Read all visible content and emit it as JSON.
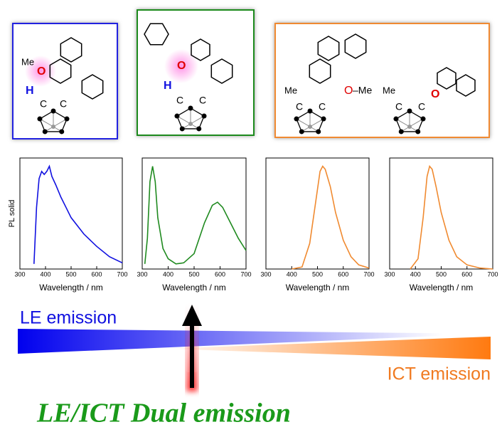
{
  "chart_data": [
    {
      "type": "line",
      "ylabel": "PL solid",
      "xlabel": "Wavelength / nm",
      "color": "#1010e0",
      "x": [
        355,
        365,
        375,
        385,
        395,
        405,
        415,
        425,
        440,
        460,
        480,
        500,
        550,
        600,
        650,
        700
      ],
      "values": [
        0.05,
        0.6,
        0.88,
        0.95,
        0.92,
        0.95,
        1.0,
        0.9,
        0.82,
        0.7,
        0.6,
        0.5,
        0.34,
        0.22,
        0.12,
        0.06
      ],
      "xlim": [
        300,
        700
      ],
      "ylim": [
        0,
        1.08
      ],
      "xticks": [
        300,
        400,
        500,
        600,
        700
      ]
    },
    {
      "type": "line",
      "xlabel": "Wavelength / nm",
      "color": "#1f8a1f",
      "x": [
        310,
        320,
        330,
        340,
        350,
        360,
        380,
        400,
        430,
        460,
        500,
        540,
        570,
        590,
        610,
        640,
        670,
        700
      ],
      "values": [
        0.05,
        0.3,
        0.85,
        1.0,
        0.85,
        0.5,
        0.2,
        0.1,
        0.05,
        0.06,
        0.15,
        0.45,
        0.62,
        0.65,
        0.6,
        0.45,
        0.3,
        0.18
      ],
      "xlim": [
        300,
        700
      ],
      "ylim": [
        0,
        1.08
      ],
      "xticks": [
        300,
        400,
        500,
        600,
        700
      ]
    },
    {
      "type": "line",
      "xlabel": "Wavelength / nm",
      "color": "#f08a30",
      "x": [
        400,
        440,
        470,
        490,
        510,
        520,
        530,
        550,
        570,
        600,
        630,
        660,
        700
      ],
      "values": [
        0,
        0.02,
        0.25,
        0.6,
        0.95,
        1.0,
        0.97,
        0.8,
        0.55,
        0.28,
        0.12,
        0.04,
        0.01
      ],
      "xlim": [
        300,
        700
      ],
      "ylim": [
        0,
        1.08
      ],
      "xticks": [
        300,
        400,
        500,
        600,
        700
      ]
    },
    {
      "type": "line",
      "xlabel": "Wavelength / nm",
      "color": "#f08a30",
      "x": [
        380,
        410,
        430,
        445,
        455,
        465,
        480,
        500,
        530,
        560,
        600,
        650,
        700
      ],
      "values": [
        0,
        0.1,
        0.5,
        0.9,
        1.0,
        0.97,
        0.8,
        0.55,
        0.28,
        0.12,
        0.04,
        0.01,
        0
      ],
      "xlim": [
        300,
        700
      ],
      "ylim": [
        0,
        1.08
      ],
      "xticks": [
        300,
        400,
        500,
        600,
        700
      ]
    }
  ],
  "molecules": [
    {
      "labels": [
        "Me",
        "O",
        "H",
        "C",
        "C"
      ]
    },
    {
      "labels": [
        "O",
        "H",
        "C",
        "C"
      ]
    },
    {
      "labels": [
        "Me",
        "C",
        "C",
        "O",
        "–Me"
      ]
    },
    {
      "labels": [
        "Me",
        "C",
        "C",
        "O"
      ]
    }
  ],
  "le_label": "LE emission",
  "ict_label": "ICT emission",
  "dual_label": "LE/ICT Dual emission"
}
